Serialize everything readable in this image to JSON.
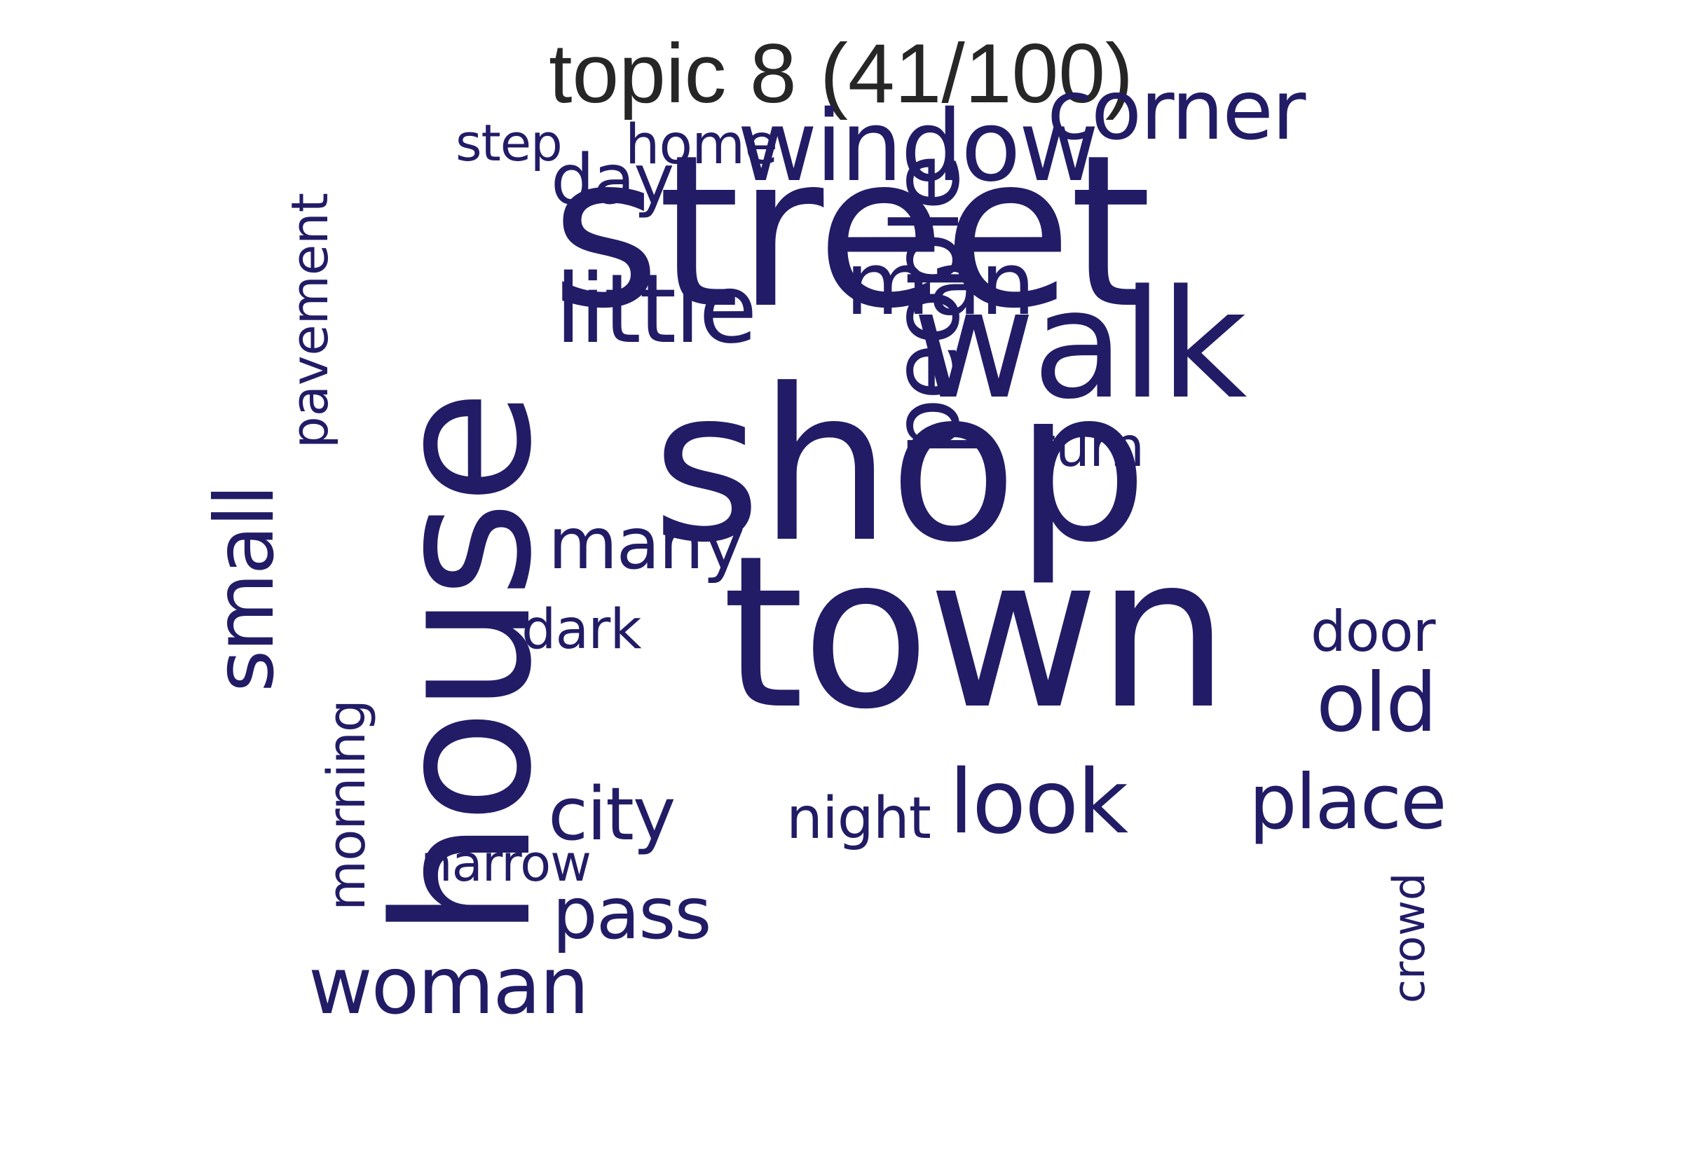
{
  "title": "topic 8 (41/100)",
  "word_color": "#221c66",
  "title_color": "#262626",
  "words": [
    {
      "text": "house",
      "orientation": "vertical"
    },
    {
      "text": "street",
      "orientation": "horizontal"
    },
    {
      "text": "shop",
      "orientation": "horizontal"
    },
    {
      "text": "town",
      "orientation": "horizontal"
    },
    {
      "text": "walk",
      "orientation": "horizontal"
    },
    {
      "text": "window",
      "orientation": "horizontal"
    },
    {
      "text": "people",
      "orientation": "vertical"
    },
    {
      "text": "corner",
      "orientation": "horizontal"
    },
    {
      "text": "small",
      "orientation": "vertical"
    },
    {
      "text": "little",
      "orientation": "horizontal"
    },
    {
      "text": "man",
      "orientation": "horizontal"
    },
    {
      "text": "pavement",
      "orientation": "vertical"
    },
    {
      "text": "day",
      "orientation": "horizontal"
    },
    {
      "text": "home",
      "orientation": "horizontal"
    },
    {
      "text": "step",
      "orientation": "horizontal"
    },
    {
      "text": "turn",
      "orientation": "horizontal"
    },
    {
      "text": "many",
      "orientation": "horizontal"
    },
    {
      "text": "dark",
      "orientation": "horizontal"
    },
    {
      "text": "door",
      "orientation": "horizontal"
    },
    {
      "text": "old",
      "orientation": "horizontal"
    },
    {
      "text": "morning",
      "orientation": "vertical"
    },
    {
      "text": "city",
      "orientation": "horizontal"
    },
    {
      "text": "night",
      "orientation": "horizontal"
    },
    {
      "text": "look",
      "orientation": "horizontal"
    },
    {
      "text": "place",
      "orientation": "horizontal"
    },
    {
      "text": "narrow",
      "orientation": "horizontal"
    },
    {
      "text": "crowd",
      "orientation": "vertical"
    },
    {
      "text": "pass",
      "orientation": "horizontal"
    },
    {
      "text": "woman",
      "orientation": "horizontal"
    }
  ]
}
